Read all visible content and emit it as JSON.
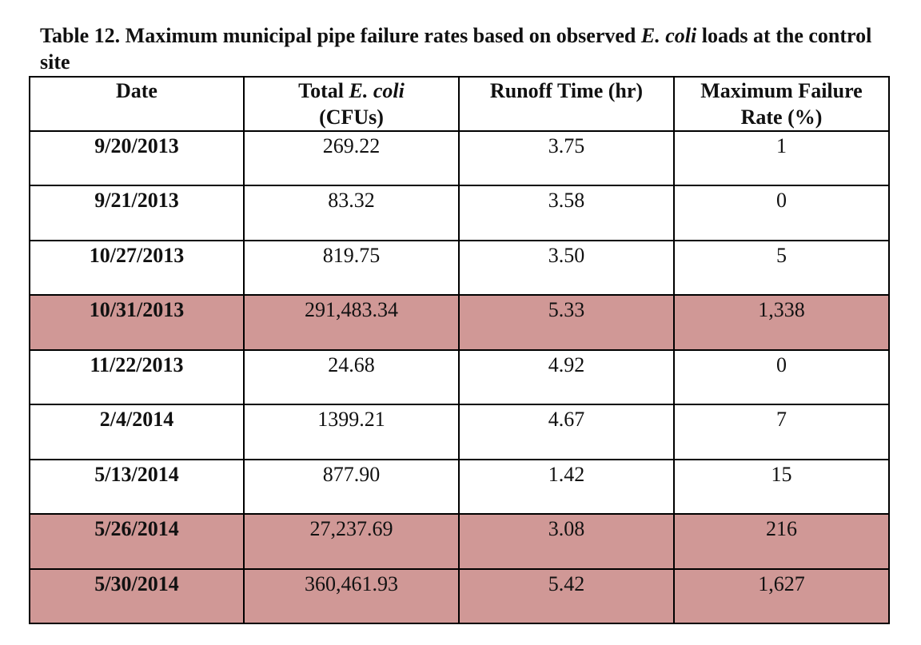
{
  "caption": {
    "part1": "Table 12. Maximum municipal pipe failure rates based on observed ",
    "italic": "E. coli",
    "part2": " loads at the control site"
  },
  "headers": {
    "date": "Date",
    "ecoli_pre": "Total ",
    "ecoli_italic": "E. coli",
    "ecoli_unit": "(CFUs)",
    "runoff": "Runoff Time (hr)",
    "failure_line1": "Maximum Failure",
    "failure_line2": "Rate (%)"
  },
  "rows": [
    {
      "date": "9/20/2013",
      "ecoli": "269.22",
      "runoff": "3.75",
      "failure": "1",
      "highlight": false
    },
    {
      "date": "9/21/2013",
      "ecoli": "83.32",
      "runoff": "3.58",
      "failure": "0",
      "highlight": false
    },
    {
      "date": "10/27/2013",
      "ecoli": "819.75",
      "runoff": "3.50",
      "failure": "5",
      "highlight": false
    },
    {
      "date": "10/31/2013",
      "ecoli": "291,483.34",
      "runoff": "5.33",
      "failure": "1,338",
      "highlight": true
    },
    {
      "date": "11/22/2013",
      "ecoli": "24.68",
      "runoff": "4.92",
      "failure": "0",
      "highlight": false
    },
    {
      "date": "2/4/2014",
      "ecoli": "1399.21",
      "runoff": "4.67",
      "failure": "7",
      "highlight": false
    },
    {
      "date": "5/13/2014",
      "ecoli": "877.90",
      "runoff": "1.42",
      "failure": "15",
      "highlight": false
    },
    {
      "date": "5/26/2014",
      "ecoli": "27,237.69",
      "runoff": "3.08",
      "failure": "216",
      "highlight": true
    },
    {
      "date": "5/30/2014",
      "ecoli": "360,461.93",
      "runoff": "5.42",
      "failure": "1,627",
      "highlight": true
    }
  ],
  "colors": {
    "highlight": "#d09896",
    "border": "#000000"
  }
}
